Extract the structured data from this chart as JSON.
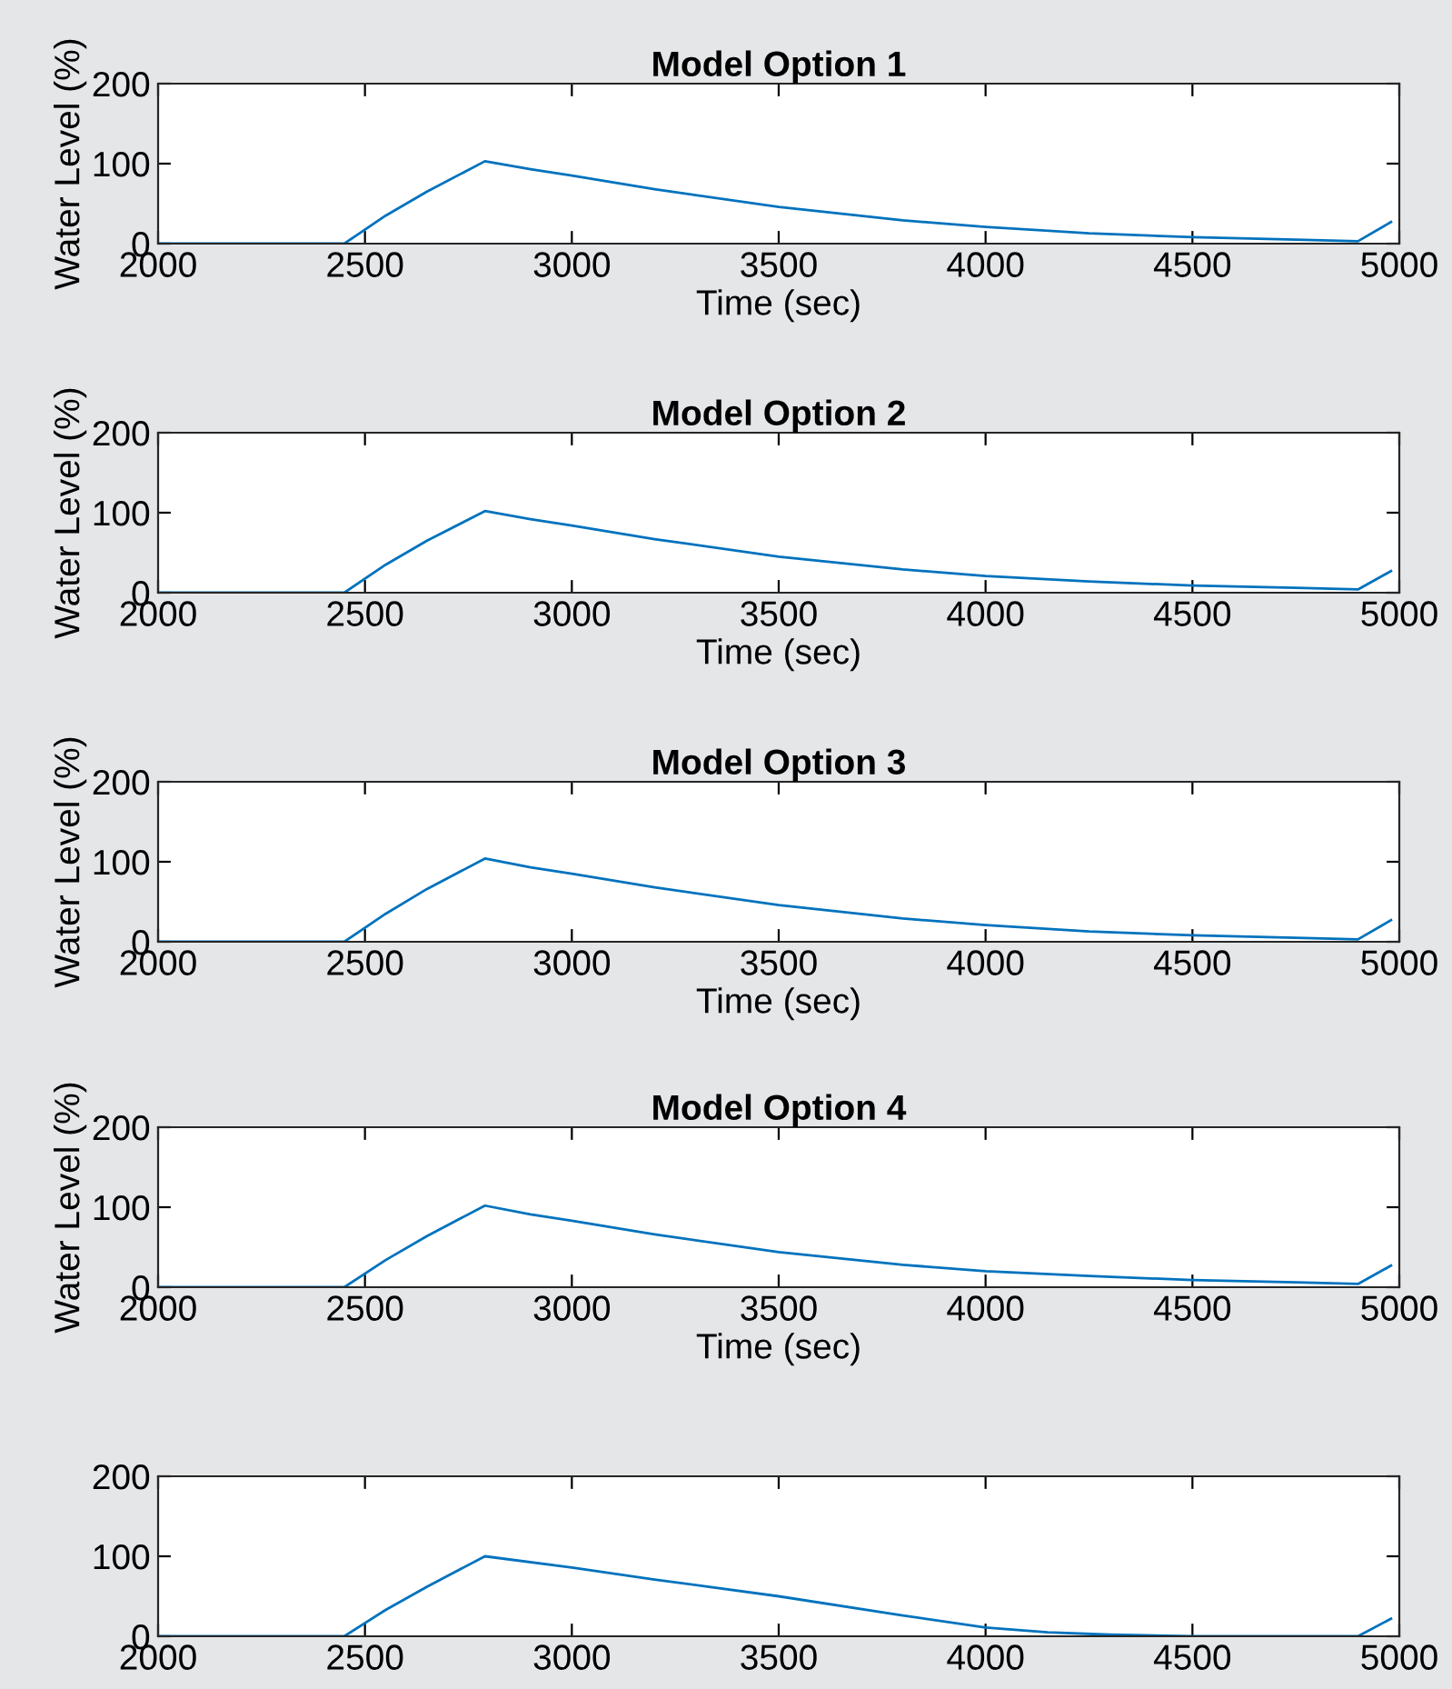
{
  "chart_data": [
    {
      "type": "line",
      "title": "Model Option 1",
      "xlabel": "Time (sec)",
      "ylabel": "Water Level (%)",
      "xlim": [
        2000,
        5000
      ],
      "ylim": [
        0,
        200
      ],
      "xticks": [
        2000,
        2500,
        3000,
        3500,
        4000,
        4500,
        5000
      ],
      "yticks": [
        0,
        100,
        200
      ],
      "grid": false,
      "legend": false,
      "series": [
        {
          "color": "#0072bd",
          "x": [
            2000,
            2450,
            2550,
            2650,
            2790,
            2900,
            3000,
            3200,
            3500,
            3800,
            4000,
            4250,
            4500,
            4750,
            4900,
            4980
          ],
          "values": [
            0,
            0,
            35,
            65,
            103,
            93,
            85,
            68,
            46,
            29,
            21,
            13,
            8,
            5,
            3,
            27
          ]
        }
      ]
    },
    {
      "type": "line",
      "title": "Model Option 2",
      "xlabel": "Time (sec)",
      "ylabel": "Water Level (%)",
      "xlim": [
        2000,
        5000
      ],
      "ylim": [
        0,
        200
      ],
      "xticks": [
        2000,
        2500,
        3000,
        3500,
        4000,
        4500,
        5000
      ],
      "yticks": [
        0,
        100,
        200
      ],
      "grid": false,
      "legend": false,
      "series": [
        {
          "color": "#0072bd",
          "x": [
            2000,
            2450,
            2550,
            2650,
            2790,
            2900,
            3000,
            3200,
            3500,
            3800,
            4000,
            4250,
            4500,
            4750,
            4900,
            4980
          ],
          "values": [
            0,
            0,
            35,
            65,
            102,
            92,
            84,
            67,
            45,
            29,
            21,
            14,
            9,
            6,
            4,
            27
          ]
        }
      ]
    },
    {
      "type": "line",
      "title": "Model Option 3",
      "xlabel": "Time (sec)",
      "ylabel": "Water Level (%)",
      "xlim": [
        2000,
        5000
      ],
      "ylim": [
        0,
        200
      ],
      "xticks": [
        2000,
        2500,
        3000,
        3500,
        4000,
        4500,
        5000
      ],
      "yticks": [
        0,
        100,
        200
      ],
      "grid": false,
      "legend": false,
      "series": [
        {
          "color": "#0072bd",
          "x": [
            2000,
            2450,
            2550,
            2650,
            2790,
            2900,
            3000,
            3200,
            3500,
            3800,
            4000,
            4250,
            4500,
            4750,
            4900,
            4980
          ],
          "values": [
            0,
            0,
            35,
            66,
            104,
            93,
            85,
            68,
            46,
            29,
            21,
            13,
            8,
            5,
            3,
            27
          ]
        }
      ]
    },
    {
      "type": "line",
      "title": "Model Option 4",
      "xlabel": "Time (sec)",
      "ylabel": "Water Level (%)",
      "xlim": [
        2000,
        5000
      ],
      "ylim": [
        0,
        200
      ],
      "xticks": [
        2000,
        2500,
        3000,
        3500,
        4000,
        4500,
        5000
      ],
      "yticks": [
        0,
        100,
        200
      ],
      "grid": false,
      "legend": false,
      "series": [
        {
          "color": "#0072bd",
          "x": [
            2000,
            2450,
            2550,
            2650,
            2790,
            2900,
            3000,
            3200,
            3500,
            3800,
            4000,
            4250,
            4500,
            4750,
            4900,
            4980
          ],
          "values": [
            0,
            0,
            34,
            64,
            102,
            91,
            83,
            66,
            44,
            28,
            20,
            14,
            9,
            6,
            4,
            27
          ]
        }
      ]
    },
    {
      "type": "line",
      "xlim": [
        2000,
        5000
      ],
      "ylim": [
        0,
        200
      ],
      "xticks": [
        2000,
        2500,
        3000,
        3500,
        4000,
        4500,
        5000
      ],
      "yticks": [
        0,
        100,
        200
      ],
      "grid": false,
      "legend": false,
      "series": [
        {
          "color": "#0072bd",
          "x": [
            2000,
            2450,
            2550,
            2650,
            2790,
            3000,
            3200,
            3500,
            3800,
            4000,
            4150,
            4300,
            4500,
            4900,
            4980
          ],
          "values": [
            0,
            0,
            33,
            62,
            100,
            86,
            71,
            50,
            26,
            11,
            5,
            2,
            0,
            0,
            22
          ]
        }
      ]
    }
  ]
}
